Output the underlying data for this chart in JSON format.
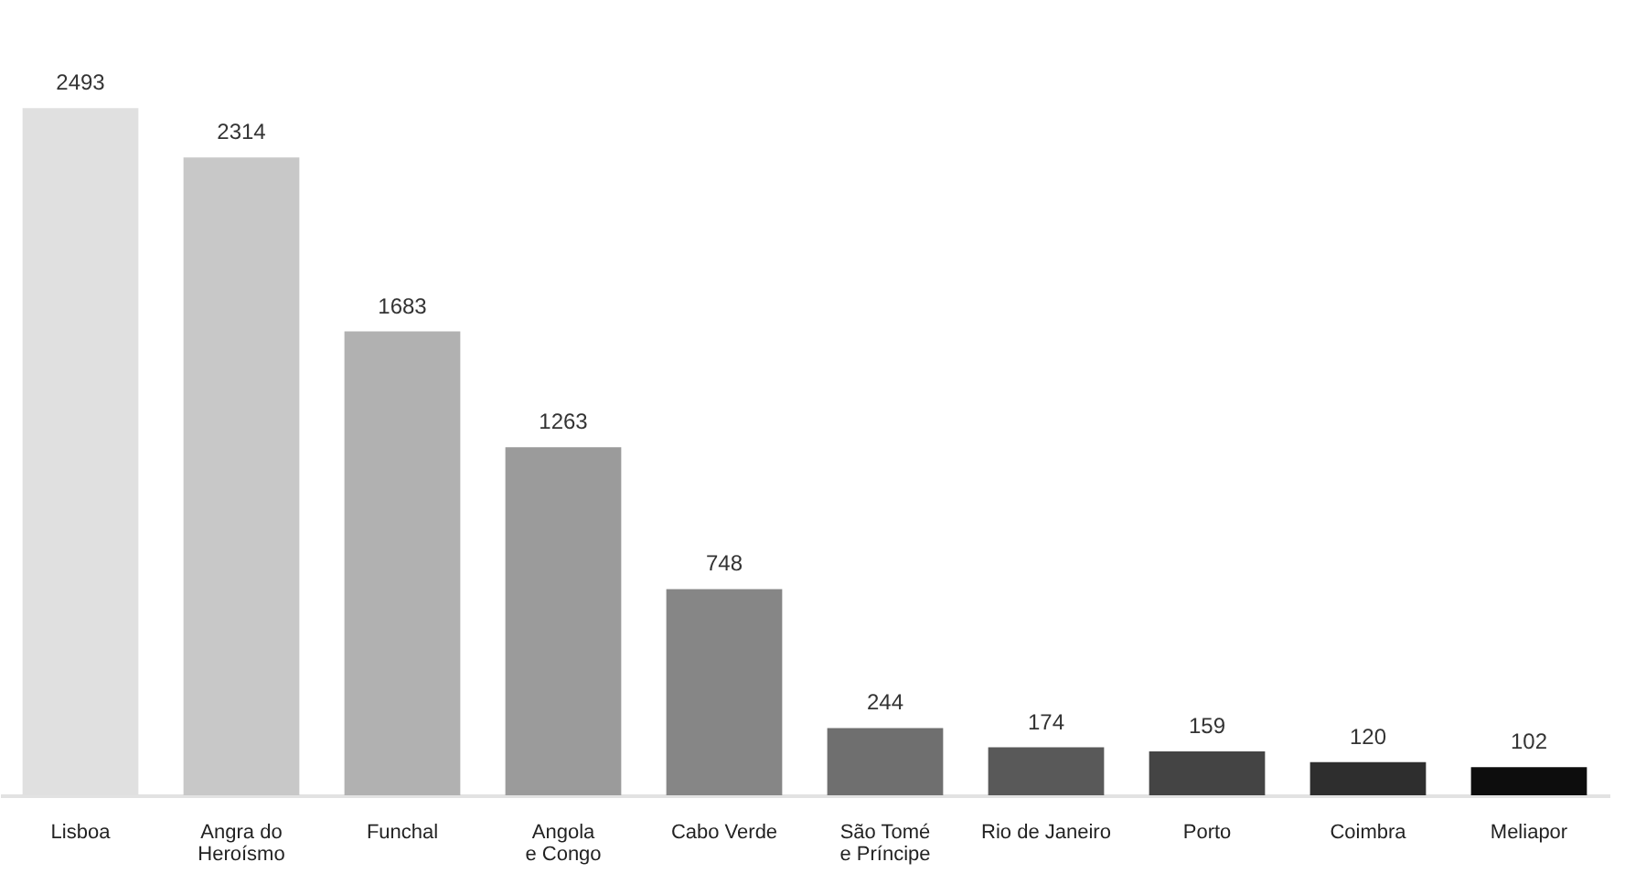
{
  "chart_data": {
    "type": "bar",
    "categories": [
      "Lisboa",
      "Angra do\nHeroísmo",
      "Funchal",
      "Angola\ne Congo",
      "Cabo Verde",
      "São Tomé\ne Príncipe",
      "Rio de Janeiro",
      "Porto",
      "Coimbra",
      "Meliapor"
    ],
    "values": [
      2493,
      2314,
      1683,
      1263,
      748,
      244,
      174,
      159,
      120,
      102
    ],
    "colors": [
      "#e0e0e0",
      "#c8c8c8",
      "#b1b1b1",
      "#9b9b9b",
      "#868686",
      "#6f6f6f",
      "#595959",
      "#444444",
      "#2e2e2e",
      "#0d0d0d"
    ],
    "data_labels": true,
    "tick_labels": "x"
  }
}
